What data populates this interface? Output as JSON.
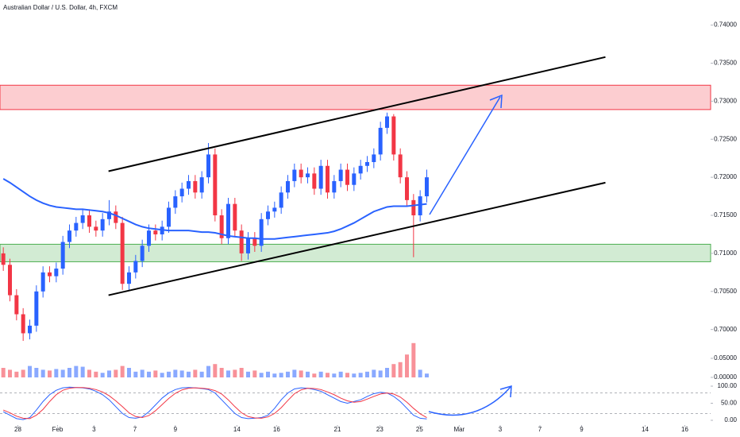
{
  "chart_data": {
    "type": "candlestick",
    "title": "Australian Dollar / U.S. Dollar, 4h, FXCM",
    "up_color": "#2962ff",
    "down_color": "#f23645",
    "xlim": [
      -0.5,
      106.9
    ],
    "xticks": [
      {
        "value": 2.2,
        "label": "28"
      },
      {
        "value": 8.2,
        "label": "Feb"
      },
      {
        "value": 13.7,
        "label": "3"
      },
      {
        "value": 19.9,
        "label": "7"
      },
      {
        "value": 26.0,
        "label": "9"
      },
      {
        "value": 35.3,
        "label": "14"
      },
      {
        "value": 41.3,
        "label": "16"
      },
      {
        "value": 50.5,
        "label": "21"
      },
      {
        "value": 56.9,
        "label": "23"
      },
      {
        "value": 62.9,
        "label": "25"
      },
      {
        "value": 68.9,
        "label": "Mar"
      },
      {
        "value": 75.1,
        "label": "3"
      },
      {
        "value": 81.1,
        "label": "7"
      },
      {
        "value": 87.4,
        "label": "9"
      },
      {
        "value": 97.0,
        "label": "14"
      },
      {
        "value": 103.0,
        "label": "16"
      }
    ],
    "ylim": [
      0.6937,
      0.7433
    ],
    "yticks": [
      {
        "value": 0.74,
        "label": "0.74000"
      },
      {
        "value": 0.735,
        "label": "0.73500"
      },
      {
        "value": 0.73,
        "label": "0.73000"
      },
      {
        "value": 0.725,
        "label": "0.72500"
      },
      {
        "value": 0.72,
        "label": "0.72000"
      },
      {
        "value": 0.715,
        "label": "0.71500"
      },
      {
        "value": 0.71,
        "label": "0.71000"
      },
      {
        "value": 0.705,
        "label": "0.70500"
      },
      {
        "value": 0.7,
        "label": "0.70000"
      }
    ],
    "open": [
      0.71,
      0.7085,
      0.7045,
      0.702,
      0.6995,
      0.7005,
      0.705,
      0.7075,
      0.707,
      0.708,
      0.7115,
      0.713,
      0.714,
      0.715,
      0.7135,
      0.713,
      0.7145,
      0.7155,
      0.714,
      0.706,
      0.7075,
      0.709,
      0.711,
      0.713,
      0.7125,
      0.7135,
      0.716,
      0.7175,
      0.7185,
      0.7195,
      0.718,
      0.72,
      0.723,
      0.715,
      0.712,
      0.7165,
      0.713,
      0.71,
      0.712,
      0.711,
      0.7145,
      0.7155,
      0.716,
      0.718,
      0.7195,
      0.721,
      0.72,
      0.7205,
      0.7185,
      0.7215,
      0.718,
      0.7195,
      0.721,
      0.719,
      0.7205,
      0.7215,
      0.722,
      0.723,
      0.7265,
      0.728,
      0.723,
      0.72,
      0.717,
      0.715,
      0.7175
    ],
    "high": [
      0.7108,
      0.7093,
      0.7053,
      0.7028,
      0.7013,
      0.7058,
      0.7083,
      0.7083,
      0.7088,
      0.7123,
      0.7138,
      0.7148,
      0.7158,
      0.7158,
      0.7143,
      0.7153,
      0.717,
      0.7163,
      0.7148,
      0.7083,
      0.7098,
      0.7118,
      0.7138,
      0.7138,
      0.7143,
      0.7168,
      0.7183,
      0.7193,
      0.7203,
      0.7203,
      0.7208,
      0.7245,
      0.7238,
      0.7158,
      0.7173,
      0.7173,
      0.7138,
      0.7128,
      0.7128,
      0.7153,
      0.7163,
      0.7168,
      0.7188,
      0.7203,
      0.7218,
      0.7218,
      0.7213,
      0.7213,
      0.7223,
      0.7223,
      0.7203,
      0.7218,
      0.7218,
      0.7213,
      0.7223,
      0.7228,
      0.7238,
      0.7273,
      0.7285,
      0.7283,
      0.7238,
      0.7208,
      0.7178,
      0.7183,
      0.721
    ],
    "low": [
      0.7077,
      0.7037,
      0.7012,
      0.6985,
      0.6987,
      0.6997,
      0.7042,
      0.7062,
      0.7062,
      0.7072,
      0.7107,
      0.7122,
      0.7132,
      0.7127,
      0.7122,
      0.7122,
      0.7137,
      0.7132,
      0.7052,
      0.7052,
      0.7067,
      0.7082,
      0.7102,
      0.7117,
      0.7117,
      0.7127,
      0.7152,
      0.7167,
      0.7177,
      0.7172,
      0.7172,
      0.7192,
      0.7142,
      0.7112,
      0.7112,
      0.7122,
      0.709,
      0.7092,
      0.7102,
      0.7102,
      0.7137,
      0.7147,
      0.7152,
      0.7172,
      0.7187,
      0.7192,
      0.7192,
      0.7177,
      0.7177,
      0.7172,
      0.7172,
      0.7187,
      0.7182,
      0.7182,
      0.7197,
      0.7207,
      0.7212,
      0.7222,
      0.7257,
      0.7222,
      0.7192,
      0.7162,
      0.7095,
      0.7142,
      0.7167
    ],
    "close": [
      0.7085,
      0.7045,
      0.702,
      0.6995,
      0.7005,
      0.705,
      0.7075,
      0.707,
      0.708,
      0.7115,
      0.713,
      0.714,
      0.715,
      0.7135,
      0.713,
      0.7145,
      0.7155,
      0.714,
      0.706,
      0.7075,
      0.709,
      0.711,
      0.713,
      0.7125,
      0.7135,
      0.716,
      0.7175,
      0.7185,
      0.7195,
      0.718,
      0.72,
      0.723,
      0.715,
      0.712,
      0.7165,
      0.713,
      0.71,
      0.712,
      0.711,
      0.7145,
      0.7155,
      0.716,
      0.718,
      0.7195,
      0.721,
      0.72,
      0.7205,
      0.7185,
      0.7215,
      0.718,
      0.7195,
      0.721,
      0.719,
      0.7205,
      0.7215,
      0.722,
      0.723,
      0.7265,
      0.728,
      0.723,
      0.72,
      0.717,
      0.715,
      0.7175,
      0.72
    ],
    "ma": {
      "color": "#2962ff",
      "values": [
        0.7198,
        0.7193,
        0.7187,
        0.7181,
        0.7175,
        0.717,
        0.7166,
        0.7163,
        0.7161,
        0.716,
        0.7159,
        0.7158,
        0.7158,
        0.7157,
        0.7156,
        0.7155,
        0.7153,
        0.715,
        0.7146,
        0.7142,
        0.7138,
        0.7135,
        0.7133,
        0.7132,
        0.7131,
        0.713,
        0.713,
        0.713,
        0.713,
        0.7129,
        0.7128,
        0.7128,
        0.7127,
        0.7125,
        0.7123,
        0.7122,
        0.7121,
        0.712,
        0.712,
        0.7119,
        0.7119,
        0.7119,
        0.712,
        0.7121,
        0.7122,
        0.7123,
        0.7124,
        0.7125,
        0.7126,
        0.7127,
        0.7129,
        0.7132,
        0.7136,
        0.714,
        0.7145,
        0.715,
        0.7155,
        0.7158,
        0.7161,
        0.7162,
        0.7162,
        0.7162,
        0.7163,
        0.7164,
        0.7165
      ]
    },
    "zones": [
      {
        "from": 0.7289,
        "to": 0.7321,
        "color": "#f23645"
      },
      {
        "from": 0.7089,
        "to": 0.7112,
        "color": "#4caf50"
      }
    ],
    "trendlines": [
      {
        "x": [
          15.9,
          91.0
        ],
        "y": [
          0.7208,
          0.7358
        ]
      },
      {
        "x": [
          15.9,
          91.0
        ],
        "y": [
          0.7045,
          0.7193
        ]
      }
    ],
    "volume": {
      "ylim": [
        0,
        0.2
      ],
      "yticks": [
        {
          "value": 0.05,
          "label": "0.05000"
        },
        {
          "value": 0,
          "label": "0.00000"
        }
      ],
      "values": [
        0.025,
        0.02,
        0.015,
        0.02,
        0.03,
        0.025,
        0.02,
        0.018,
        0.022,
        0.02,
        0.025,
        0.03,
        0.028,
        0.02,
        0.015,
        0.012,
        0.018,
        0.02,
        0.03,
        0.025,
        0.015,
        0.02,
        0.015,
        0.018,
        0.012,
        0.015,
        0.02,
        0.018,
        0.015,
        0.02,
        0.015,
        0.03,
        0.035,
        0.025,
        0.018,
        0.02,
        0.025,
        0.015,
        0.018,
        0.012,
        0.015,
        0.01,
        0.012,
        0.015,
        0.02,
        0.018,
        0.015,
        0.01,
        0.015,
        0.012,
        0.01,
        0.015,
        0.012,
        0.01,
        0.012,
        0.015,
        0.02,
        0.018,
        0.025,
        0.035,
        0.04,
        0.06,
        0.09,
        0.02,
        0.01
      ]
    },
    "oscillator": {
      "ylim": [
        -14,
        114
      ],
      "yticks": [
        {
          "value": 100,
          "label": "100.00"
        },
        {
          "value": 50,
          "label": "50.00"
        },
        {
          "value": 0,
          "label": "0.00"
        }
      ],
      "levels": [
        80,
        20
      ],
      "lines": [
        {
          "color": "#2962ff",
          "values": [
            25,
            15,
            5,
            2,
            8,
            30,
            55,
            75,
            88,
            95,
            97,
            96,
            95,
            92,
            85,
            75,
            60,
            40,
            20,
            8,
            6,
            10,
            25,
            45,
            65,
            80,
            90,
            95,
            96,
            95,
            93,
            90,
            80,
            60,
            40,
            20,
            8,
            5,
            6,
            8,
            15,
            35,
            60,
            80,
            92,
            95,
            94,
            90,
            85,
            75,
            65,
            55,
            50,
            55,
            60,
            70,
            78,
            82,
            80,
            70,
            55,
            35,
            15,
            6,
            4
          ]
        },
        {
          "color": "#f23645",
          "values": [
            30,
            22,
            12,
            6,
            5,
            15,
            32,
            55,
            75,
            88,
            94,
            96,
            96,
            94,
            90,
            83,
            72,
            57,
            40,
            22,
            11,
            8,
            14,
            28,
            46,
            64,
            79,
            89,
            94,
            95,
            94,
            92,
            87,
            77,
            60,
            40,
            22,
            11,
            7,
            6,
            10,
            20,
            37,
            58,
            78,
            89,
            94,
            93,
            90,
            83,
            75,
            65,
            57,
            53,
            55,
            62,
            70,
            77,
            80,
            77,
            68,
            53,
            35,
            19,
            8
          ]
        }
      ]
    }
  }
}
